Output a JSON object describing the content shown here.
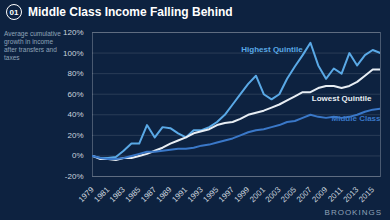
{
  "chart_data": {
    "type": "line",
    "panel_label": "01",
    "title": "Middle Class Income Falling Behind",
    "y_label": "Average cumulative growth in income after transfers and taxes",
    "credit": "BROOKINGS",
    "x": [
      1979,
      1980,
      1981,
      1982,
      1983,
      1984,
      1985,
      1986,
      1987,
      1988,
      1989,
      1990,
      1991,
      1992,
      1993,
      1994,
      1995,
      1996,
      1997,
      1998,
      1999,
      2000,
      2001,
      2002,
      2003,
      2004,
      2005,
      2006,
      2007,
      2008,
      2009,
      2010,
      2011,
      2012,
      2013,
      2014,
      2015,
      2016
    ],
    "series": [
      {
        "name": "Highest Quintile",
        "color": "#5aa9e6",
        "values": [
          0,
          -2,
          -2,
          -1,
          5,
          12,
          12,
          30,
          18,
          28,
          27,
          22,
          18,
          25,
          25,
          28,
          33,
          40,
          50,
          60,
          70,
          78,
          60,
          55,
          60,
          75,
          87,
          98,
          110,
          88,
          75,
          85,
          80,
          100,
          88,
          98,
          103,
          100
        ]
      },
      {
        "name": "Lowest Quintile",
        "color": "#e8eef4",
        "values": [
          0,
          -3,
          -3,
          -4,
          -2,
          -2,
          0,
          2,
          5,
          8,
          12,
          15,
          18,
          22,
          24,
          26,
          30,
          32,
          33,
          36,
          40,
          42,
          44,
          47,
          50,
          54,
          58,
          62,
          62,
          66,
          68,
          68,
          66,
          68,
          72,
          78,
          84,
          84
        ]
      },
      {
        "name": "Middle Class",
        "color": "#3a78c8",
        "values": [
          0,
          -2,
          -3,
          -3,
          -2,
          0,
          2,
          4,
          4,
          5,
          6,
          7,
          7,
          8,
          10,
          11,
          13,
          15,
          17,
          20,
          23,
          25,
          26,
          28,
          30,
          33,
          34,
          37,
          40,
          38,
          37,
          38,
          37,
          38,
          40,
          43,
          45,
          46
        ]
      }
    ],
    "xlim": [
      1979,
      2016
    ],
    "xticks": [
      1979,
      1981,
      1983,
      1985,
      1987,
      1989,
      1991,
      1993,
      1995,
      1997,
      1999,
      2001,
      2003,
      2005,
      2007,
      2009,
      2011,
      2013,
      2015
    ],
    "ylim": [
      -20,
      120
    ],
    "yticks": [
      {
        "value": -20,
        "label": "-20%"
      },
      {
        "value": 0,
        "label": "0%"
      },
      {
        "value": 20,
        "label": "20%"
      },
      {
        "value": 40,
        "label": "40%"
      },
      {
        "value": 60,
        "label": "60%"
      },
      {
        "value": 80,
        "label": "80%"
      },
      {
        "value": 100,
        "label": "100%"
      },
      {
        "value": 120,
        "label": "120%"
      }
    ],
    "grid": true
  }
}
